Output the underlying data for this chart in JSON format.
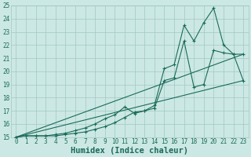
{
  "xlabel": "Humidex (Indice chaleur)",
  "xlim": [
    -0.5,
    23.5
  ],
  "ylim": [
    15,
    25
  ],
  "yticks": [
    15,
    16,
    17,
    18,
    19,
    20,
    21,
    22,
    23,
    24,
    25
  ],
  "xticks": [
    0,
    1,
    2,
    3,
    4,
    5,
    6,
    7,
    8,
    9,
    10,
    11,
    12,
    13,
    14,
    15,
    16,
    17,
    18,
    19,
    20,
    21,
    22,
    23
  ],
  "bg_color": "#cce8e4",
  "line_color": "#1a6b5a",
  "line1_x": [
    0,
    1,
    2,
    3,
    4,
    5,
    6,
    7,
    8,
    9,
    10,
    11,
    12,
    13,
    14,
    15,
    16,
    17,
    18,
    19,
    20,
    21,
    22,
    23
  ],
  "line1_y": [
    15.0,
    15.1,
    15.1,
    15.1,
    15.2,
    15.3,
    15.5,
    15.7,
    16.0,
    16.4,
    16.7,
    17.3,
    16.8,
    17.0,
    17.4,
    20.2,
    20.5,
    23.5,
    22.3,
    23.7,
    24.8,
    22.0,
    21.3,
    21.3
  ],
  "line2_x": [
    0,
    1,
    2,
    3,
    4,
    5,
    6,
    7,
    8,
    9,
    10,
    11,
    12,
    13,
    14,
    15,
    16,
    17,
    18,
    19,
    20,
    21,
    22,
    23
  ],
  "line2_y": [
    15.0,
    15.1,
    15.1,
    15.1,
    15.1,
    15.2,
    15.3,
    15.4,
    15.6,
    15.8,
    16.1,
    16.5,
    16.9,
    17.0,
    17.2,
    19.3,
    19.5,
    22.3,
    18.8,
    19.0,
    21.6,
    21.4,
    21.3,
    19.3
  ],
  "line3_x": [
    0,
    23
  ],
  "line3_y": [
    15.0,
    19.3
  ],
  "line4_x": [
    0,
    23
  ],
  "line4_y": [
    15.0,
    21.3
  ],
  "grid_color": "#a0c8c4",
  "tick_fontsize": 5.5,
  "xlabel_fontsize": 7.5
}
